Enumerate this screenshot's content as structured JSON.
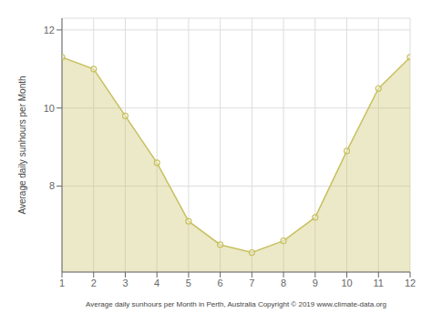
{
  "chart_data": {
    "type": "area",
    "x": [
      1,
      2,
      3,
      4,
      5,
      6,
      7,
      8,
      9,
      10,
      11,
      12
    ],
    "values": [
      11.3,
      11.0,
      9.8,
      8.6,
      7.1,
      6.5,
      6.3,
      6.6,
      7.2,
      8.9,
      10.5,
      11.3
    ],
    "color": "#c8c060",
    "marker": "circle",
    "xlabel": "Average daily sunhours per Month in Perth, Australia Copyright © 2019 www.climate-data.org",
    "ylabel": "Average daily sunhours per Month",
    "xlim": [
      1,
      12
    ],
    "xticks": [
      1,
      2,
      3,
      4,
      5,
      6,
      7,
      8,
      9,
      10,
      11,
      12
    ],
    "ylim": [
      5.8,
      12.3
    ],
    "yticks": [
      8,
      10,
      12
    ],
    "grid": true
  }
}
